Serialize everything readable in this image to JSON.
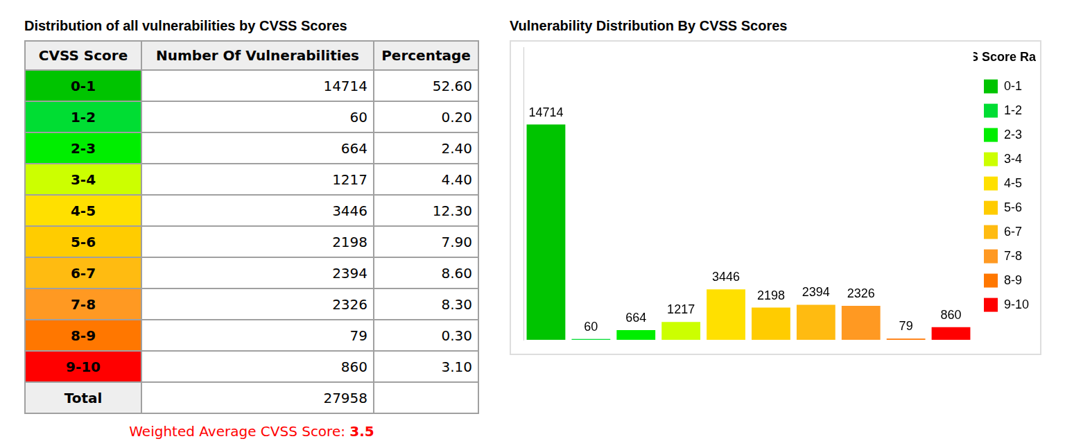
{
  "table": {
    "title": "Distribution of all vulnerabilities by CVSS Scores",
    "header": [
      "CVSS Score",
      "Number Of Vulnerabilities",
      "Percentage"
    ],
    "rows": [
      [
        "0-1",
        "14714",
        "52.60"
      ],
      [
        "1-2",
        "60",
        "0.20"
      ],
      [
        "2-3",
        "664",
        "2.40"
      ],
      [
        "3-4",
        "1217",
        "4.40"
      ],
      [
        "4-5",
        "3446",
        "12.30"
      ],
      [
        "5-6",
        "2198",
        "7.90"
      ],
      [
        "6-7",
        "2394",
        "8.60"
      ],
      [
        "7-8",
        "2326",
        "8.30"
      ],
      [
        "8-9",
        "79",
        "0.30"
      ],
      [
        "9-10",
        "860",
        "3.10"
      ]
    ],
    "total": {
      "label": "Total",
      "value": "27958"
    },
    "footer": {
      "label": "Weighted Average CVSS Score:",
      "value": "3.5"
    }
  },
  "chart_data": {
    "type": "bar",
    "title": "Vulnerability Distribution By CVSS Scores",
    "categories": [
      "0-1",
      "1-2",
      "2-3",
      "3-4",
      "4-5",
      "5-6",
      "6-7",
      "7-8",
      "8-9",
      "9-10"
    ],
    "values": [
      14714,
      60,
      664,
      1217,
      3446,
      2198,
      2394,
      2326,
      79,
      860
    ],
    "colors": [
      "#00c400",
      "#00dd33",
      "#00ee00",
      "#ccff00",
      "#ffe000",
      "#ffcc00",
      "#ffbb11",
      "#ff9922",
      "#ff7700",
      "#ff0000"
    ],
    "ylim": [
      0,
      20000
    ],
    "legend": "right",
    "legend_title": "CVSS Score Ranges",
    "data_labels": true,
    "tick_labels": false,
    "grid": false
  }
}
